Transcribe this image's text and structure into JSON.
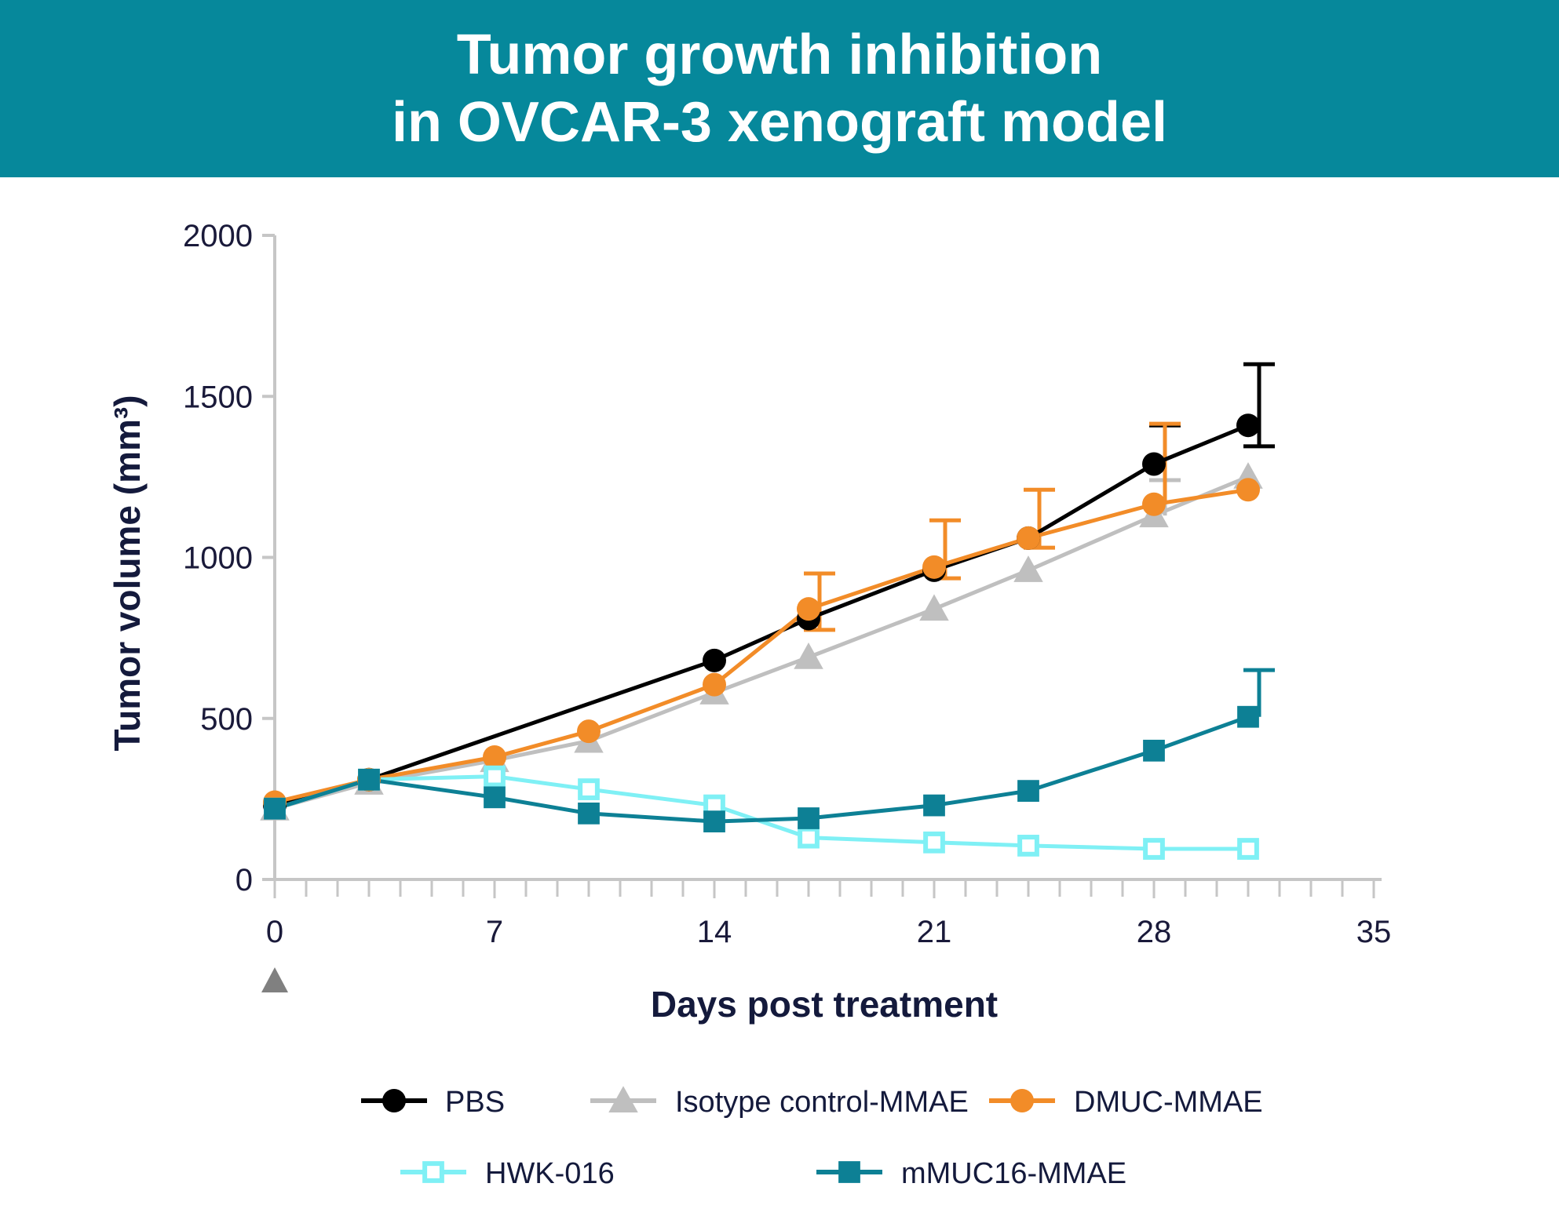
{
  "header": {
    "title_line1": "Tumor growth inhibition",
    "title_line2": "in OVCAR-3 xenograft model"
  },
  "chart_data": {
    "type": "line",
    "title": "Tumor growth inhibition in OVCAR-3 xenograft model",
    "xlabel": "Days post treatment",
    "ylabel": "Tumor volume (mm³)",
    "xlim": [
      0,
      35
    ],
    "ylim": [
      0,
      2000
    ],
    "xticks": [
      0,
      7,
      14,
      21,
      28,
      35
    ],
    "yticks": [
      0,
      500,
      1000,
      1500,
      2000
    ],
    "grid": false,
    "treatment_marker_day": 0,
    "legend_position": "bottom",
    "series": [
      {
        "name": "PBS",
        "color": "#000000",
        "marker": "circle",
        "fill": "filled",
        "x": [
          0,
          3,
          14,
          17,
          21,
          24,
          28,
          31
        ],
        "y": [
          230,
          310,
          680,
          810,
          960,
          1060,
          1290,
          1410
        ],
        "err_upper": [
          0,
          0,
          0,
          0,
          0,
          0,
          120,
          190
        ],
        "err_lower": [
          0,
          0,
          0,
          0,
          0,
          0,
          0,
          65
        ]
      },
      {
        "name": "Isotype control-MMAE",
        "color": "#bfbfbf",
        "marker": "triangle",
        "fill": "filled",
        "x": [
          0,
          3,
          7,
          10,
          14,
          17,
          21,
          24,
          28,
          31
        ],
        "y": [
          220,
          300,
          370,
          430,
          580,
          690,
          840,
          960,
          1130,
          1250
        ],
        "err_upper": [
          0,
          0,
          0,
          0,
          0,
          0,
          0,
          0,
          110,
          0
        ],
        "err_lower": [
          0,
          0,
          0,
          0,
          0,
          0,
          0,
          0,
          0,
          0
        ]
      },
      {
        "name": "DMUC-MMAE",
        "color": "#f28c28",
        "marker": "circle",
        "fill": "filled",
        "x": [
          0,
          3,
          7,
          10,
          14,
          17,
          21,
          24,
          28,
          31
        ],
        "y": [
          240,
          310,
          380,
          460,
          605,
          840,
          970,
          1060,
          1165,
          1210
        ],
        "err_upper": [
          0,
          0,
          0,
          0,
          0,
          110,
          145,
          150,
          250,
          0
        ],
        "err_lower": [
          0,
          0,
          0,
          0,
          0,
          65,
          35,
          30,
          0,
          0
        ]
      },
      {
        "name": "HWK-016",
        "color": "#7ff0f5",
        "marker": "square",
        "fill": "open",
        "x": [
          0,
          3,
          7,
          10,
          14,
          17,
          21,
          24,
          28,
          31
        ],
        "y": [
          220,
          310,
          320,
          280,
          230,
          130,
          115,
          105,
          95,
          95
        ],
        "err_upper": [
          0,
          0,
          0,
          0,
          0,
          0,
          0,
          0,
          0,
          0
        ],
        "err_lower": [
          0,
          0,
          0,
          0,
          0,
          0,
          0,
          0,
          0,
          0
        ]
      },
      {
        "name": "mMUC16-MMAE",
        "color": "#0d8095",
        "marker": "square",
        "fill": "filled",
        "x": [
          0,
          3,
          7,
          10,
          14,
          17,
          21,
          24,
          28,
          31
        ],
        "y": [
          220,
          310,
          255,
          205,
          180,
          190,
          230,
          275,
          400,
          505
        ],
        "err_upper": [
          0,
          0,
          0,
          0,
          0,
          0,
          0,
          0,
          0,
          145
        ],
        "err_lower": [
          0,
          0,
          0,
          0,
          0,
          0,
          0,
          0,
          0,
          0
        ]
      }
    ]
  }
}
